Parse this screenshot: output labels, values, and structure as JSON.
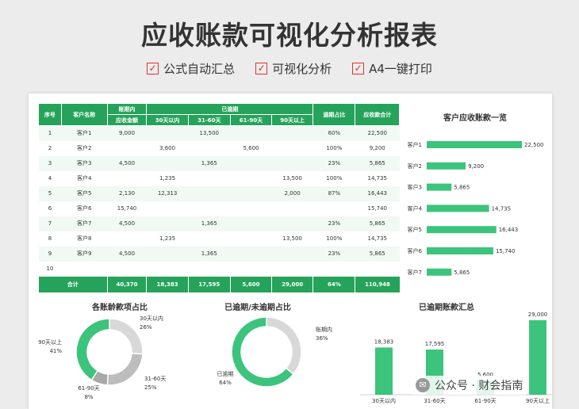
{
  "header": {
    "title": "应收账款可视化分析报表",
    "features": [
      "公式自动汇总",
      "可视化分析",
      "A4一键打印"
    ]
  },
  "table": {
    "headers": {
      "seq": "序号",
      "customer": "客户名称",
      "not_due_group": "账期内",
      "not_due_sub": "应收金额",
      "overdue_group": "已逾期",
      "overdue_subs": [
        "30天以内",
        "31-60天",
        "61-90天",
        "90天以上"
      ],
      "ratio": "逾期占比",
      "total": "应收款合计"
    },
    "rows": [
      [
        "1",
        "客户1",
        "9,000",
        "",
        "13,500",
        "",
        "",
        "60%",
        "22,500"
      ],
      [
        "2",
        "客户2",
        "",
        "3,600",
        "",
        "5,600",
        "",
        "100%",
        "9,200"
      ],
      [
        "3",
        "客户3",
        "4,500",
        "",
        "1,365",
        "",
        "",
        "23%",
        "5,865"
      ],
      [
        "4",
        "客户4",
        "",
        "1,235",
        "",
        "",
        "13,500",
        "100%",
        "14,735"
      ],
      [
        "5",
        "客户5",
        "2,130",
        "12,313",
        "",
        "",
        "2,000",
        "87%",
        "16,443"
      ],
      [
        "6",
        "客户6",
        "15,740",
        "",
        "",
        "",
        "",
        "",
        "15,740"
      ],
      [
        "7",
        "客户7",
        "4,500",
        "",
        "1,365",
        "",
        "",
        "23%",
        "5,865"
      ],
      [
        "8",
        "客户8",
        "",
        "1,235",
        "",
        "",
        "13,500",
        "100%",
        "14,735"
      ],
      [
        "9",
        "客户9",
        "4,500",
        "",
        "1,365",
        "",
        "",
        "23%",
        "5,865"
      ],
      [
        "10",
        "",
        "",
        "",
        "",
        "",
        "",
        "",
        ""
      ]
    ],
    "footer": [
      "合计",
      "",
      "40,370",
      "18,383",
      "17,595",
      "5,600",
      "29,000",
      "64%",
      "110,948"
    ]
  },
  "colors": {
    "accent": "#26a35a",
    "bar": "#3cc47c",
    "donut_green": "#3cc47c",
    "donut_gray": "#d8d8d8",
    "donut_dark": "#bdbdbd"
  },
  "chart_data": [
    {
      "type": "bar",
      "title": "客户应收账款一览",
      "categories": [
        "客户1",
        "客户2",
        "客户3",
        "客户4",
        "客户5",
        "客户6",
        "客户7"
      ],
      "values": [
        22500,
        9200,
        5865,
        14735,
        16443,
        15740,
        5865
      ],
      "labels": [
        "22,500",
        "9,200",
        "5,865",
        "14,735",
        "16,443",
        "15,740",
        "5,865"
      ],
      "orientation": "horizontal",
      "xlim": [
        0,
        22500
      ]
    },
    {
      "type": "pie",
      "title": "各账龄款项占比",
      "categories": [
        "30天以内",
        "31-60天",
        "61-90天",
        "90天以上"
      ],
      "values": [
        26,
        25,
        8,
        41
      ],
      "labels": [
        "26%",
        "25%",
        "8%",
        "41%"
      ]
    },
    {
      "type": "pie",
      "title": "已逾期/未逾期占比",
      "categories": [
        "账期内",
        "已逾期"
      ],
      "values": [
        36,
        64
      ],
      "labels": [
        "36%",
        "64%"
      ]
    },
    {
      "type": "bar",
      "title": "已逾期账款汇总",
      "categories": [
        "30天以内",
        "31-60天",
        "61-90天",
        "90天以上"
      ],
      "values": [
        18383,
        17595,
        5600,
        29000
      ],
      "labels": [
        "18,383",
        "17,595",
        "5,600",
        "29,000"
      ],
      "ylim": [
        0,
        29000
      ]
    }
  ],
  "watermark": {
    "text": "公众号 · 财会指南",
    "icon": "wechat-icon"
  }
}
